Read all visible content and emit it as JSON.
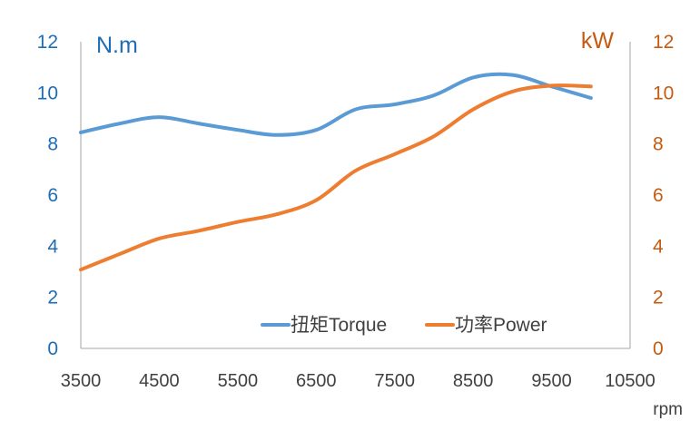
{
  "chart_data": {
    "type": "line",
    "title": "",
    "xlabel": "rpm",
    "ylabel_left": "N.m",
    "ylabel_right": "kW",
    "xlim": [
      3500,
      10500
    ],
    "x_ticks": [
      "3500",
      "4500",
      "5500",
      "6500",
      "7500",
      "8500",
      "9500",
      "10500"
    ],
    "ylim_left": [
      0,
      12
    ],
    "ylim_right": [
      0,
      12
    ],
    "y_ticks_left": [
      "0",
      "2",
      "4",
      "6",
      "8",
      "10",
      "12"
    ],
    "y_ticks_right": [
      "0",
      "2",
      "4",
      "6",
      "8",
      "10",
      "12"
    ],
    "grid": false,
    "legend_position": "bottom-right",
    "series": [
      {
        "name": "扭矩Torque",
        "axis": "left",
        "color": "#5b9bd5",
        "x": [
          3500,
          4000,
          4500,
          5000,
          5500,
          6000,
          6500,
          7000,
          7500,
          8000,
          8500,
          9000,
          9500,
          10000
        ],
        "y": [
          8.45,
          8.8,
          9.05,
          8.8,
          8.55,
          8.35,
          8.55,
          9.35,
          9.55,
          9.9,
          10.6,
          10.7,
          10.25,
          9.8
        ]
      },
      {
        "name": "功率Power",
        "axis": "right",
        "color": "#ed7d31",
        "x": [
          3500,
          4000,
          4500,
          5000,
          5500,
          6000,
          6500,
          7000,
          7500,
          8000,
          8500,
          9000,
          9500,
          10000
        ],
        "y": [
          3.08,
          3.7,
          4.3,
          4.6,
          4.95,
          5.25,
          5.8,
          6.95,
          7.6,
          8.3,
          9.35,
          10.05,
          10.28,
          10.25
        ]
      }
    ]
  }
}
